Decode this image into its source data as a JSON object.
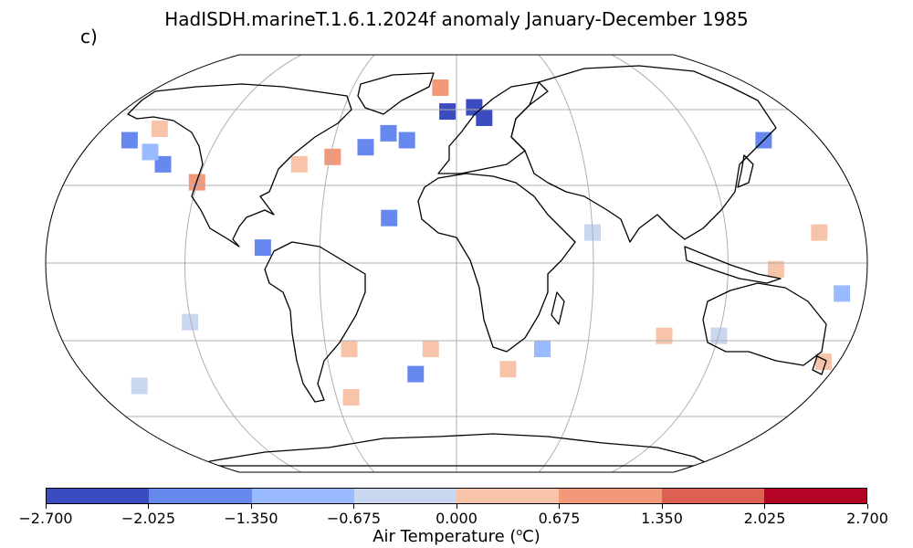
{
  "panel_label": "c)",
  "title": "HadISDH.marineT.1.6.1.2024f anomaly January-December 1985",
  "colorbar": {
    "label_prefix": "Air Temperature (",
    "label_sup": "o",
    "label_suffix": "C)",
    "ticks": [
      "−2.700",
      "−2.025",
      "−1.350",
      "−0.675",
      "0.000",
      "0.675",
      "1.350",
      "2.025",
      "2.700"
    ],
    "colors": [
      "#3b4cc0",
      "#6788ee",
      "#9abbff",
      "#c9d7f0",
      "#f7c4aa",
      "#f4987a",
      "#dd6052",
      "#b40426"
    ]
  },
  "map": {
    "projection": "Robinson",
    "gridlines": true,
    "field": "marine air temperature anomaly (°C), 1985 annual mean vs climatology",
    "anomaly_cells": [
      {
        "lon": -5,
        "lat": 58,
        "class": 0
      },
      {
        "lon": 10,
        "lat": 60,
        "class": 0
      },
      {
        "lon": 15,
        "lat": 55,
        "class": 0
      },
      {
        "lon": -35,
        "lat": 48,
        "class": 1
      },
      {
        "lon": -45,
        "lat": 42,
        "class": 1
      },
      {
        "lon": -25,
        "lat": 45,
        "class": 1
      },
      {
        "lon": -165,
        "lat": 45,
        "class": 1
      },
      {
        "lon": 155,
        "lat": 45,
        "class": 1
      },
      {
        "lon": -140,
        "lat": 35,
        "class": 1
      },
      {
        "lon": -85,
        "lat": 5,
        "class": 1
      },
      {
        "lon": -30,
        "lat": 15,
        "class": 1
      },
      {
        "lon": -20,
        "lat": -40,
        "class": 1
      },
      {
        "lon": 40,
        "lat": -30,
        "class": 2
      },
      {
        "lon": -150,
        "lat": 40,
        "class": 2
      },
      {
        "lon": 170,
        "lat": -10,
        "class": 2
      },
      {
        "lon": 60,
        "lat": 10,
        "class": 3
      },
      {
        "lon": -120,
        "lat": -20,
        "class": 3
      },
      {
        "lon": 120,
        "lat": -25,
        "class": 3
      },
      {
        "lon": -160,
        "lat": -45,
        "class": 3
      },
      {
        "lon": -155,
        "lat": 50,
        "class": 4
      },
      {
        "lon": -75,
        "lat": 35,
        "class": 4
      },
      {
        "lon": 160,
        "lat": 10,
        "class": 4
      },
      {
        "lon": 25,
        "lat": -38,
        "class": 4
      },
      {
        "lon": -50,
        "lat": -30,
        "class": 4
      },
      {
        "lon": -12,
        "lat": -30,
        "class": 4
      },
      {
        "lon": 95,
        "lat": -25,
        "class": 4
      },
      {
        "lon": 140,
        "lat": -2,
        "class": 4
      },
      {
        "lon": 175,
        "lat": -35,
        "class": 4
      },
      {
        "lon": -55,
        "lat": -50,
        "class": 4
      },
      {
        "lon": -10,
        "lat": 70,
        "class": 5
      },
      {
        "lon": -60,
        "lat": 38,
        "class": 5
      },
      {
        "lon": -120,
        "lat": 28,
        "class": 5
      }
    ]
  }
}
